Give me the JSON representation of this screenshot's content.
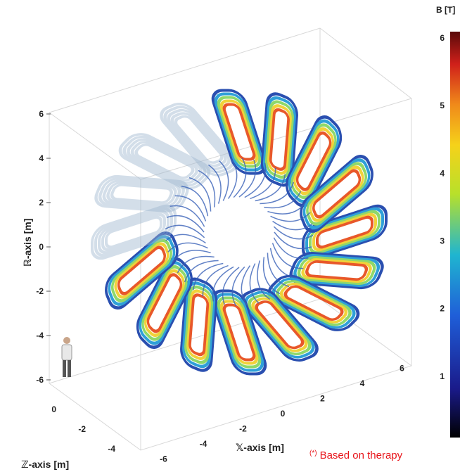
{
  "figure": {
    "colorbar": {
      "label": "B [T]",
      "ticks": [
        1,
        2,
        3,
        4,
        5,
        6
      ]
    },
    "r_axis": {
      "label": "ℝ-axis [m]",
      "ticks": [
        6,
        4,
        2,
        0,
        -2,
        -4,
        -6
      ]
    },
    "z_axis": {
      "label": "ℤ-axis [m]",
      "ticks": [
        0,
        -2,
        -4
      ]
    },
    "x_axis": {
      "label": "𝕏-axis [m]",
      "ticks": [
        -6,
        -4,
        -2,
        0,
        2,
        4,
        6
      ]
    },
    "footnote": {
      "marker": "(*)",
      "text": "Based on therapy"
    }
  }
}
